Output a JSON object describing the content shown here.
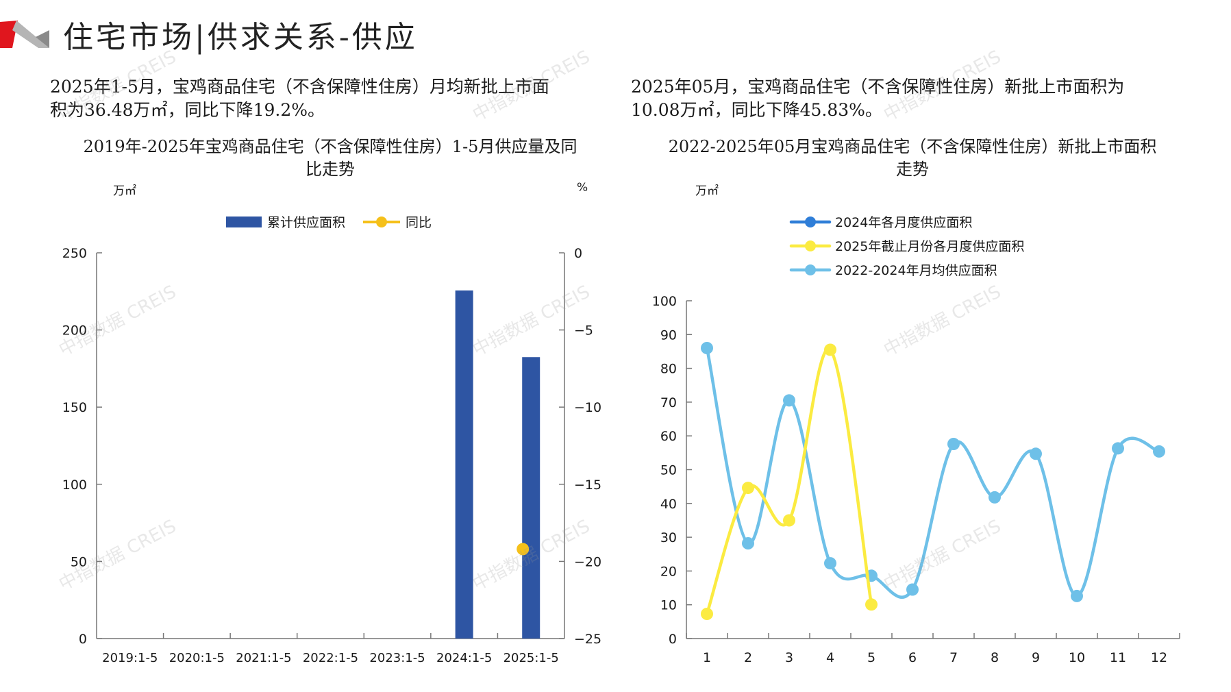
{
  "header": {
    "title": "住宅市场|供求关系-供应",
    "colors": {
      "red": "#e0161e",
      "gray": "#9a9a9a"
    }
  },
  "left": {
    "summary_line1": "2025年1-5月，宝鸡商品住宅（不含保障性住房）月均新批上市面",
    "summary_line2": "积为36.48万㎡，同比下降19.2%。",
    "chart_title_line1": "2019年-2025年宝鸡商品住宅（不含保障性住房）1-5月供应量及同",
    "chart_title_line2": "比走势",
    "left_unit": "万㎡",
    "right_unit": "%"
  },
  "right": {
    "summary_line1": "2025年05月，宝鸡商品住宅（不含保障性住房）新批上市面积为",
    "summary_line2": "10.08万㎡，同比下降45.83%。",
    "chart_title_line1": "2022-2025年05月宝鸡商品住宅（不含保障性住房）新批上市面积",
    "chart_title_line2": "走势",
    "unit": "万㎡"
  },
  "watermark": "中指数据 CREIS",
  "chart_data": [
    {
      "type": "bar",
      "categories": [
        "2019:1-5",
        "2020:1-5",
        "2021:1-5",
        "2022:1-5",
        "2023:1-5",
        "2024:1-5",
        "2025:1-5"
      ],
      "series": [
        {
          "name": "累计供应面积",
          "axis": "left",
          "color": "#2e55a3",
          "values": [
            null,
            null,
            null,
            null,
            null,
            225.6,
            182.4
          ]
        },
        {
          "name": "同比",
          "type": "line",
          "axis": "right",
          "color": "#f5c01a",
          "values": [
            null,
            null,
            null,
            null,
            null,
            null,
            -19.2
          ]
        }
      ],
      "ylim_left": [
        0,
        250
      ],
      "yticks_left": [
        0,
        50,
        100,
        150,
        200,
        250
      ],
      "ylim_right": [
        -25,
        0
      ],
      "yticks_right": [
        0,
        -5,
        -10,
        -15,
        -20,
        -25
      ],
      "legend": "top",
      "grid": false
    },
    {
      "type": "line",
      "x": [
        1,
        2,
        3,
        4,
        5,
        6,
        7,
        8,
        9,
        10,
        11,
        12
      ],
      "series": [
        {
          "name": "2024年各月度供应面积",
          "color": "#2f7ed8",
          "values": [
            null,
            null,
            null,
            null,
            null,
            null,
            null,
            null,
            null,
            null,
            null,
            null
          ]
        },
        {
          "name": "2025年截止月份各月度供应面积",
          "color": "#fbeb41",
          "values": [
            7.3,
            44.6,
            35.0,
            85.5,
            10.08,
            null,
            null,
            null,
            null,
            null,
            null,
            null
          ]
        },
        {
          "name": "2022-2024年月均供应面积",
          "color": "#6ec0e8",
          "values": [
            86.0,
            28.2,
            70.5,
            22.3,
            18.6,
            14.5,
            57.6,
            41.8,
            54.7,
            12.6,
            56.3,
            55.4
          ]
        }
      ],
      "ylim": [
        0,
        100
      ],
      "yticks": [
        0,
        10,
        20,
        30,
        40,
        50,
        60,
        70,
        80,
        90,
        100
      ],
      "legend": "top-left",
      "grid": false
    }
  ]
}
